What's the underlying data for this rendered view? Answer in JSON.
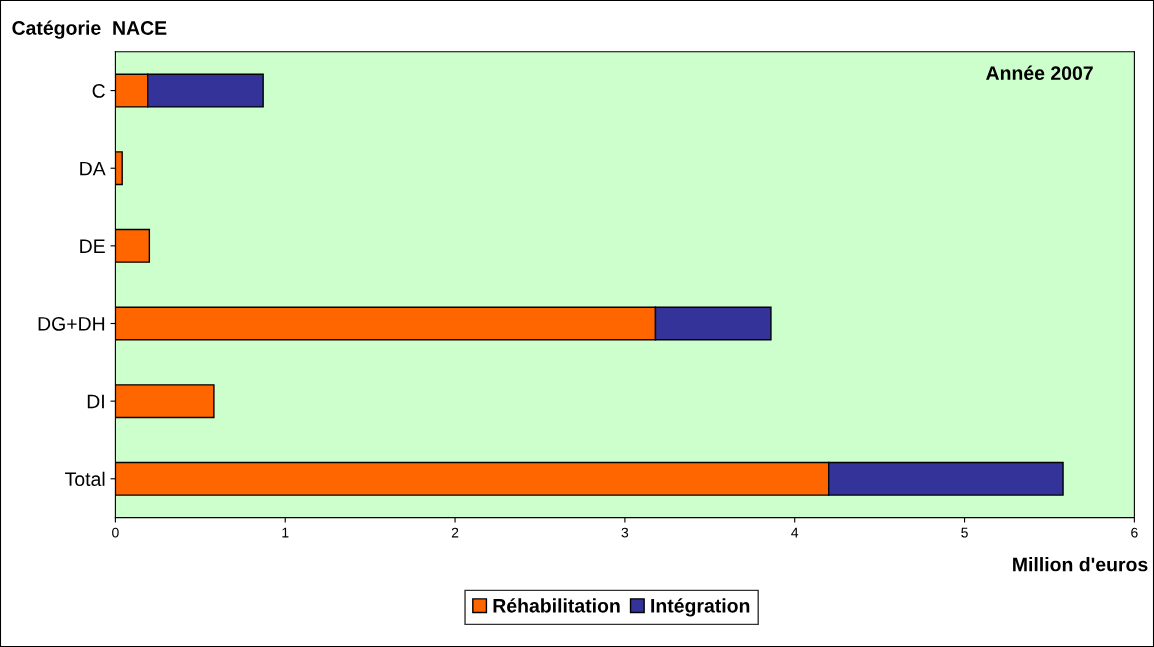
{
  "chart_data": {
    "type": "bar",
    "orientation": "horizontal",
    "stacked": true,
    "ylabel": "Catégorie  NACE",
    "xlabel": "Million d'euros",
    "annotations": [
      "Année 2007"
    ],
    "categories": [
      "C",
      "DA",
      "DE",
      "DG+DH",
      "DI",
      "Total"
    ],
    "series": [
      {
        "name": "Réhabilitation",
        "color": "#ff6600",
        "values": [
          0.19,
          0.04,
          0.2,
          3.18,
          0.58,
          4.2
        ]
      },
      {
        "name": "Intégration",
        "color": "#333399",
        "values": [
          0.68,
          null,
          null,
          0.68,
          null,
          1.38
        ]
      }
    ],
    "xlim": [
      0,
      6
    ],
    "xticks": [
      0,
      1,
      2,
      3,
      4,
      5,
      6
    ],
    "grid": false,
    "legend": "bottom"
  }
}
